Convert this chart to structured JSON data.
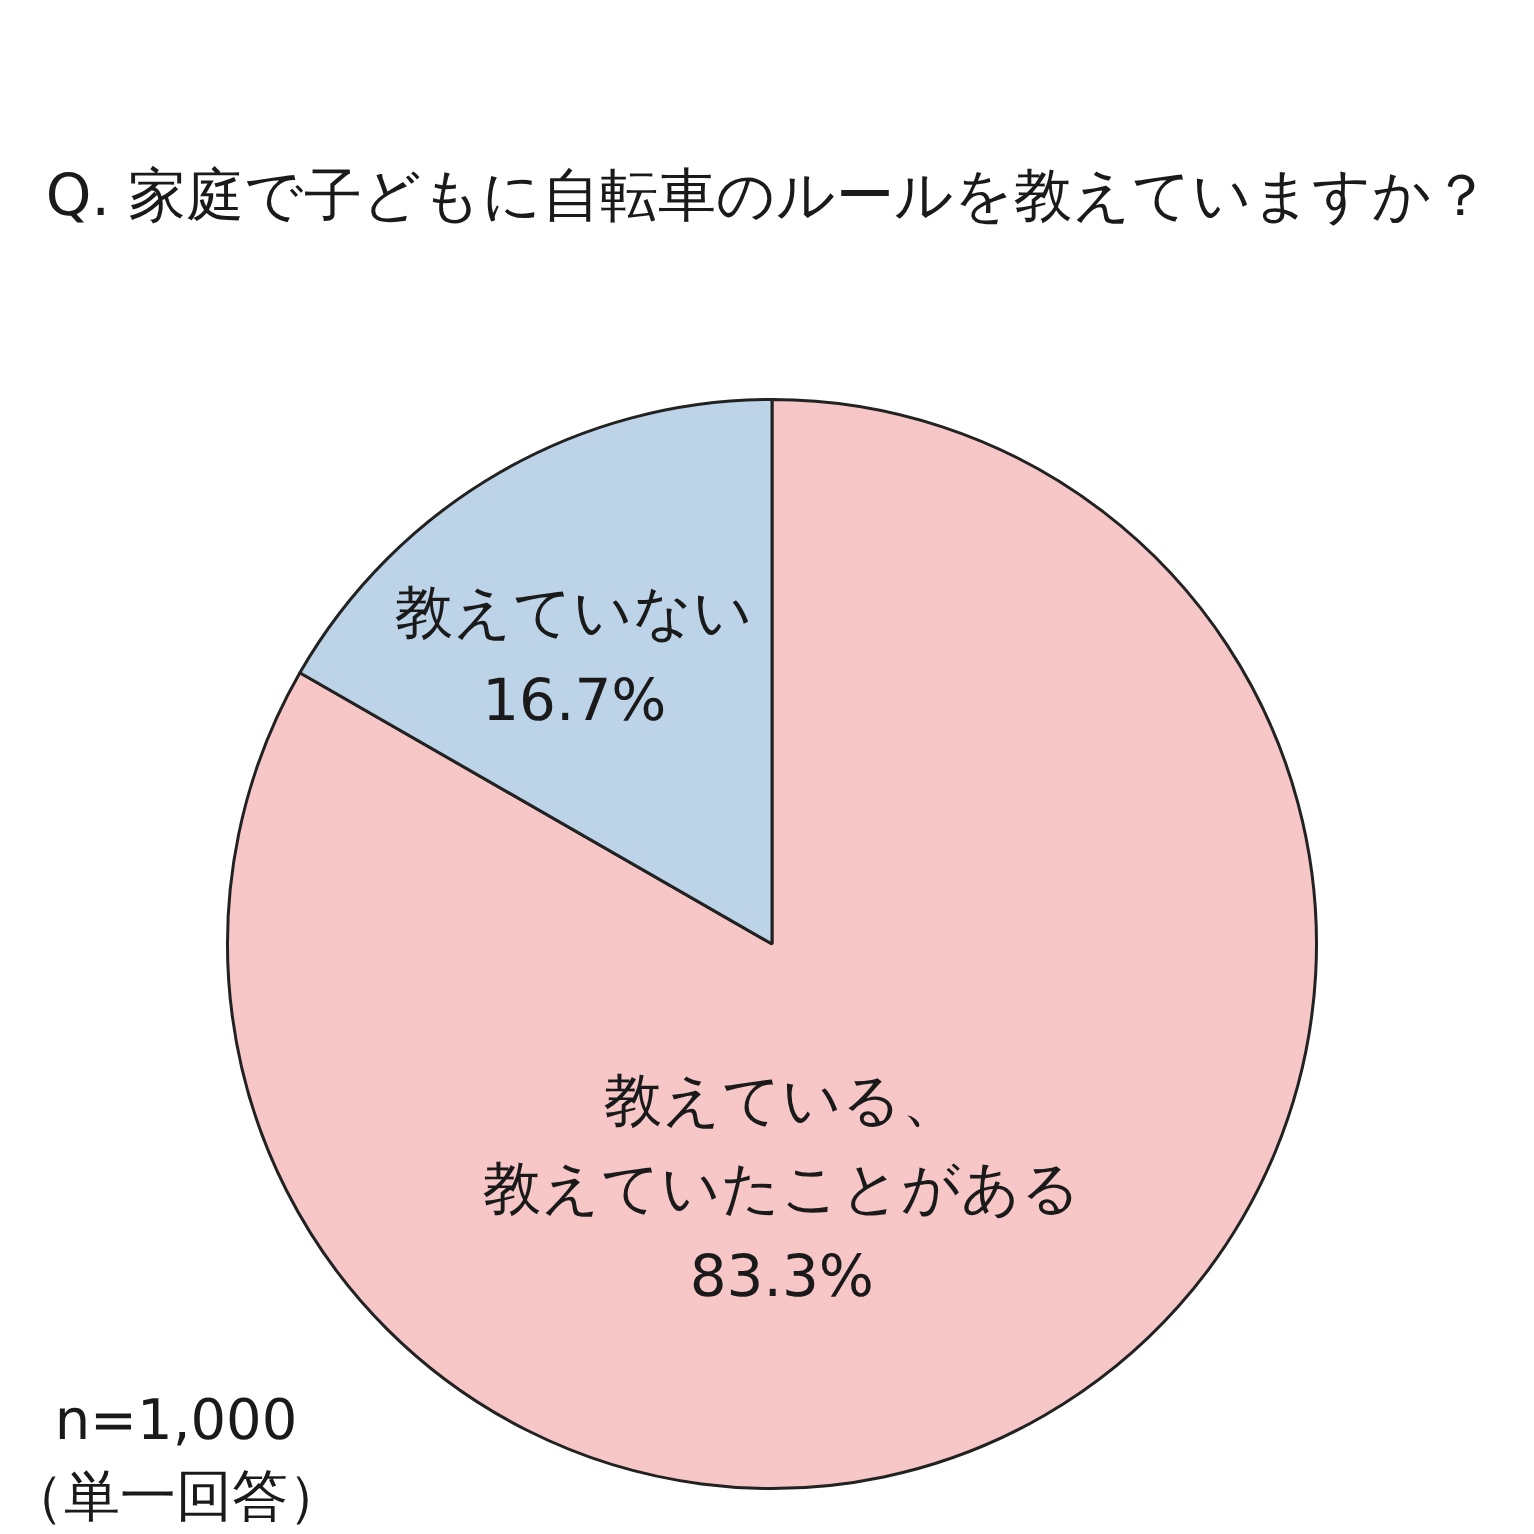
{
  "chart_data": {
    "type": "pie",
    "title": "Q. 家庭で子どもに自転車のルールを教えていますか？",
    "categories": [
      "教えている、教えていたことがある",
      "教えていない"
    ],
    "values": [
      83.3,
      16.7
    ],
    "colors": [
      "#f7c6c7",
      "#bcd3e8"
    ],
    "value_labels": [
      "83.3%",
      "16.7%"
    ],
    "annotations": [
      "n=1,000",
      "（単一回答）"
    ]
  }
}
